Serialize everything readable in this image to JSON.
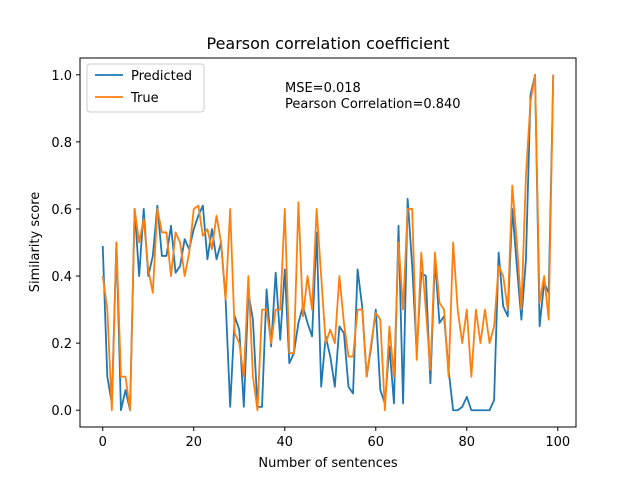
{
  "chart_data": {
    "type": "line",
    "title": "Pearson correlation coefficient",
    "xlabel": "Number of sentences",
    "ylabel": "Similarity score",
    "xlim": [
      -5,
      104
    ],
    "ylim": [
      -0.05,
      1.05
    ],
    "x_ticks": [
      0,
      20,
      40,
      60,
      80,
      100
    ],
    "y_ticks": [
      0.0,
      0.2,
      0.4,
      0.6,
      0.8,
      1.0
    ],
    "x_tick_labels": [
      "0",
      "20",
      "40",
      "60",
      "80",
      "100"
    ],
    "y_tick_labels": [
      "0.0",
      "0.2",
      "0.4",
      "0.6",
      "0.8",
      "1.0"
    ],
    "grid": false,
    "legend_position": "top-left",
    "annotations": [
      "MSE=0.018",
      "Pearson Correlation=0.840"
    ],
    "x": [
      0,
      1,
      2,
      3,
      4,
      5,
      6,
      7,
      8,
      9,
      10,
      11,
      12,
      13,
      14,
      15,
      16,
      17,
      18,
      19,
      20,
      21,
      22,
      23,
      24,
      25,
      26,
      27,
      28,
      29,
      30,
      31,
      32,
      33,
      34,
      35,
      36,
      37,
      38,
      39,
      40,
      41,
      42,
      43,
      44,
      45,
      46,
      47,
      48,
      49,
      50,
      51,
      52,
      53,
      54,
      55,
      56,
      57,
      58,
      59,
      60,
      61,
      62,
      63,
      64,
      65,
      66,
      67,
      68,
      69,
      70,
      71,
      72,
      73,
      74,
      75,
      76,
      77,
      78,
      79,
      80,
      81,
      82,
      83,
      84,
      85,
      86,
      87,
      88,
      89,
      90,
      91,
      92,
      93,
      94,
      95,
      96,
      97,
      98,
      99
    ],
    "series": [
      {
        "name": "Predicted",
        "color": "#1f77b4",
        "values": [
          0.49,
          0.1,
          0.02,
          0.5,
          0.0,
          0.06,
          0.0,
          0.6,
          0.4,
          0.6,
          0.4,
          0.46,
          0.61,
          0.46,
          0.46,
          0.55,
          0.41,
          0.43,
          0.51,
          0.48,
          0.54,
          0.58,
          0.61,
          0.45,
          0.54,
          0.45,
          0.5,
          0.33,
          0.01,
          0.28,
          0.24,
          0.01,
          0.35,
          0.27,
          0.01,
          0.01,
          0.36,
          0.19,
          0.41,
          0.21,
          0.42,
          0.14,
          0.17,
          0.26,
          0.31,
          0.26,
          0.22,
          0.53,
          0.07,
          0.22,
          0.16,
          0.07,
          0.25,
          0.23,
          0.07,
          0.05,
          0.42,
          0.31,
          0.1,
          0.19,
          0.3,
          0.06,
          0.02,
          0.19,
          0.02,
          0.55,
          0.02,
          0.63,
          0.43,
          0.17,
          0.41,
          0.4,
          0.08,
          0.45,
          0.26,
          0.28,
          0.12,
          0.0,
          0.0,
          0.01,
          0.04,
          0.0,
          0.0,
          0.0,
          0.0,
          0.0,
          0.03,
          0.47,
          0.31,
          0.28,
          0.6,
          0.43,
          0.27,
          0.45,
          0.94,
          1.0,
          0.25,
          0.38,
          0.35,
          1.0
        ]
      },
      {
        "name": "True",
        "color": "#ff7f0e",
        "values": [
          0.4,
          0.3,
          0.0,
          0.5,
          0.1,
          0.1,
          0.0,
          0.6,
          0.5,
          0.57,
          0.42,
          0.35,
          0.6,
          0.53,
          0.53,
          0.4,
          0.53,
          0.5,
          0.4,
          0.47,
          0.6,
          0.61,
          0.52,
          0.54,
          0.48,
          0.58,
          0.5,
          0.33,
          0.6,
          0.23,
          0.2,
          0.1,
          0.4,
          0.1,
          0.0,
          0.3,
          0.3,
          0.2,
          0.3,
          0.3,
          0.6,
          0.17,
          0.17,
          0.62,
          0.28,
          0.4,
          0.3,
          0.6,
          0.4,
          0.2,
          0.24,
          0.2,
          0.4,
          0.26,
          0.16,
          0.16,
          0.3,
          0.3,
          0.1,
          0.2,
          0.29,
          0.27,
          0.0,
          0.25,
          0.1,
          0.5,
          0.3,
          0.6,
          0.6,
          0.15,
          0.47,
          0.3,
          0.12,
          0.47,
          0.32,
          0.3,
          0.1,
          0.5,
          0.3,
          0.2,
          0.3,
          0.1,
          0.3,
          0.2,
          0.3,
          0.2,
          0.25,
          0.43,
          0.4,
          0.3,
          0.67,
          0.5,
          0.3,
          0.7,
          0.92,
          1.0,
          0.32,
          0.4,
          0.27,
          1.0
        ]
      }
    ]
  }
}
